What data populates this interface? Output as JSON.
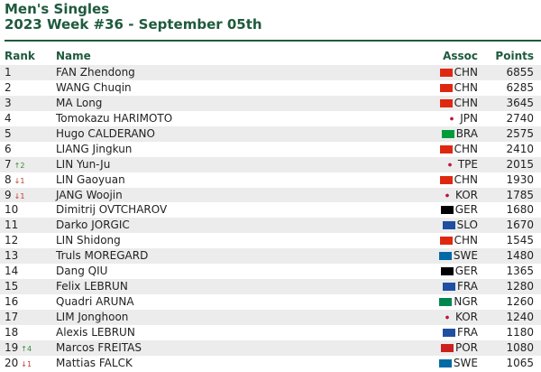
{
  "header": {
    "title": "Men's Singles",
    "subtitle": "2023 Week #36 - September 05th"
  },
  "columns": {
    "rank": "Rank",
    "name": "Name",
    "assoc": "Assoc",
    "points": "Points"
  },
  "flag_colors": {
    "CHN": "#de2910",
    "JPN": "#ffffff",
    "BRA": "#009c3b",
    "TPE": "#eeeeee",
    "KOR": "#ffffff",
    "GER": "#000000",
    "SLO": "#1e4fa0",
    "SWE": "#006aa7",
    "FRA": "#1f4fa3",
    "NGR": "#008751",
    "POR": "#cc1f1f"
  },
  "rows": [
    {
      "rank": "1",
      "move": "",
      "dir": "",
      "name": "FAN Zhendong",
      "assoc": "CHN",
      "points": "6855"
    },
    {
      "rank": "2",
      "move": "",
      "dir": "",
      "name": "WANG Chuqin",
      "assoc": "CHN",
      "points": "6285"
    },
    {
      "rank": "3",
      "move": "",
      "dir": "",
      "name": "MA Long",
      "assoc": "CHN",
      "points": "3645"
    },
    {
      "rank": "4",
      "move": "",
      "dir": "",
      "name": "Tomokazu HARIMOTO",
      "assoc": "JPN",
      "points": "2740"
    },
    {
      "rank": "5",
      "move": "",
      "dir": "",
      "name": "Hugo CALDERANO",
      "assoc": "BRA",
      "points": "2575"
    },
    {
      "rank": "6",
      "move": "",
      "dir": "",
      "name": "LIANG Jingkun",
      "assoc": "CHN",
      "points": "2410"
    },
    {
      "rank": "7",
      "move": "↑2",
      "dir": "up",
      "name": "LIN Yun-Ju",
      "assoc": "TPE",
      "points": "2015"
    },
    {
      "rank": "8",
      "move": "↓1",
      "dir": "down",
      "name": "LIN Gaoyuan",
      "assoc": "CHN",
      "points": "1930"
    },
    {
      "rank": "9",
      "move": "↓1",
      "dir": "down",
      "name": "JANG Woojin",
      "assoc": "KOR",
      "points": "1785"
    },
    {
      "rank": "10",
      "move": "",
      "dir": "",
      "name": "Dimitrij OVTCHAROV",
      "assoc": "GER",
      "points": "1680"
    },
    {
      "rank": "11",
      "move": "",
      "dir": "",
      "name": "Darko JORGIC",
      "assoc": "SLO",
      "points": "1670"
    },
    {
      "rank": "12",
      "move": "",
      "dir": "",
      "name": "LIN Shidong",
      "assoc": "CHN",
      "points": "1545"
    },
    {
      "rank": "13",
      "move": "",
      "dir": "",
      "name": "Truls MOREGARD",
      "assoc": "SWE",
      "points": "1480"
    },
    {
      "rank": "14",
      "move": "",
      "dir": "",
      "name": "Dang QIU",
      "assoc": "GER",
      "points": "1365"
    },
    {
      "rank": "15",
      "move": "",
      "dir": "",
      "name": "Felix LEBRUN",
      "assoc": "FRA",
      "points": "1280"
    },
    {
      "rank": "16",
      "move": "",
      "dir": "",
      "name": "Quadri ARUNA",
      "assoc": "NGR",
      "points": "1260"
    },
    {
      "rank": "17",
      "move": "",
      "dir": "",
      "name": "LIM Jonghoon",
      "assoc": "KOR",
      "points": "1240"
    },
    {
      "rank": "18",
      "move": "",
      "dir": "",
      "name": "Alexis LEBRUN",
      "assoc": "FRA",
      "points": "1180"
    },
    {
      "rank": "19",
      "move": "↑4",
      "dir": "up",
      "name": "Marcos FREITAS",
      "assoc": "POR",
      "points": "1080"
    },
    {
      "rank": "20",
      "move": "↓1",
      "dir": "down",
      "name": "Mattias FALCK",
      "assoc": "SWE",
      "points": "1065"
    }
  ]
}
